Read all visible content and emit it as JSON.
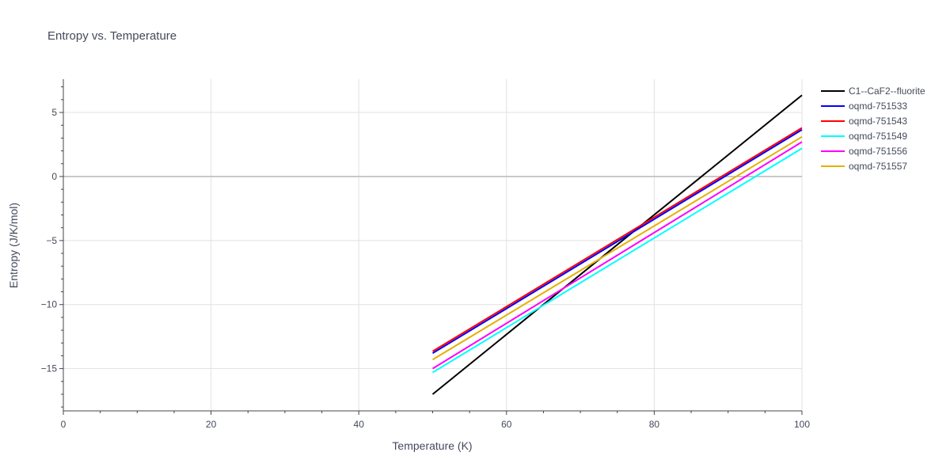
{
  "chart_data": {
    "type": "line",
    "title": "Entropy vs. Temperature",
    "xlabel": "Temperature (K)",
    "ylabel": "Entropy (J/K/mol)",
    "xlim": [
      0,
      100
    ],
    "ylim": [
      -18.3,
      7.6
    ],
    "x_ticks": [
      0,
      20,
      40,
      60,
      80,
      100
    ],
    "y_ticks": [
      -15,
      -10,
      -5,
      0,
      5
    ],
    "grid": true,
    "legend_position": "top-right",
    "series": [
      {
        "name": "C1--CaF2--fluorite",
        "color": "#000000",
        "x": [
          50,
          100
        ],
        "y": [
          -17.0,
          6.35
        ]
      },
      {
        "name": "oqmd-751533",
        "color": "#0000ff",
        "x": [
          50,
          100
        ],
        "y": [
          -13.8,
          3.65
        ]
      },
      {
        "name": "oqmd-751543",
        "color": "#ff0000",
        "x": [
          50,
          100
        ],
        "y": [
          -13.65,
          3.8
        ]
      },
      {
        "name": "oqmd-751549",
        "color": "#00ffff",
        "x": [
          50,
          100
        ],
        "y": [
          -15.3,
          2.2
        ]
      },
      {
        "name": "oqmd-751556",
        "color": "#ff00ff",
        "x": [
          50,
          100
        ],
        "y": [
          -15.0,
          2.7
        ]
      },
      {
        "name": "oqmd-751557",
        "color": "#e6b000",
        "x": [
          50,
          100
        ],
        "y": [
          -14.3,
          3.1
        ]
      }
    ]
  }
}
